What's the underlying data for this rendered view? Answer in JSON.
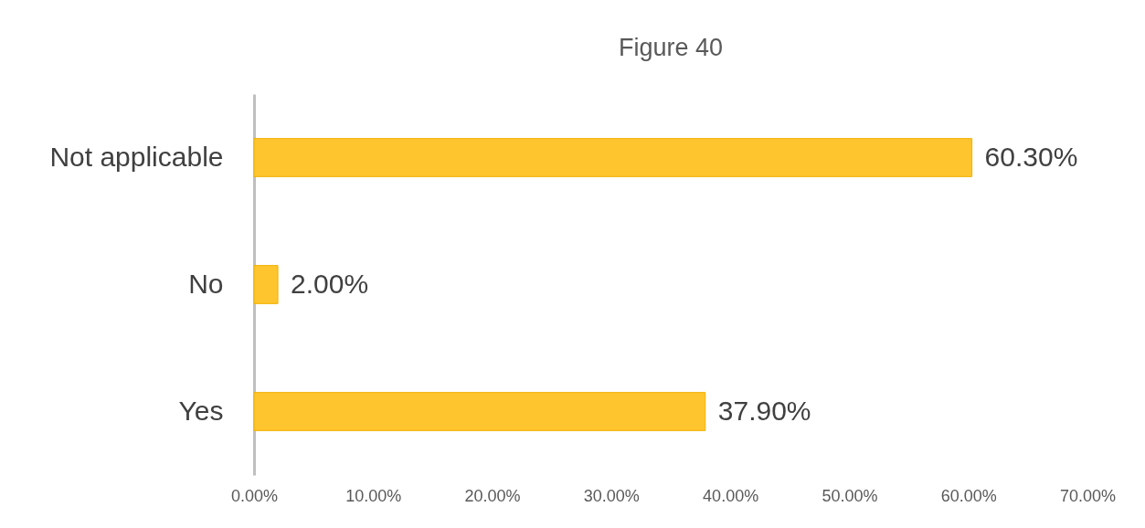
{
  "chart_data": {
    "type": "bar",
    "orientation": "horizontal",
    "title": "Figure 40",
    "categories": [
      "Not applicable",
      "No",
      "Yes"
    ],
    "values": [
      60.3,
      2.0,
      37.9
    ],
    "value_labels": [
      "60.30%",
      "2.00%",
      "37.90%"
    ],
    "color": "#ffc52e",
    "xlim": [
      0,
      70
    ],
    "xticks": [
      {
        "value": 0,
        "label": "0.00%"
      },
      {
        "value": 10,
        "label": "10.00%"
      },
      {
        "value": 20,
        "label": "20.00%"
      },
      {
        "value": 30,
        "label": "30.00%"
      },
      {
        "value": 40,
        "label": "40.00%"
      },
      {
        "value": 50,
        "label": "50.00%"
      },
      {
        "value": 60,
        "label": "60.00%"
      },
      {
        "value": 70,
        "label": "70.00%"
      }
    ],
    "grid": false
  }
}
